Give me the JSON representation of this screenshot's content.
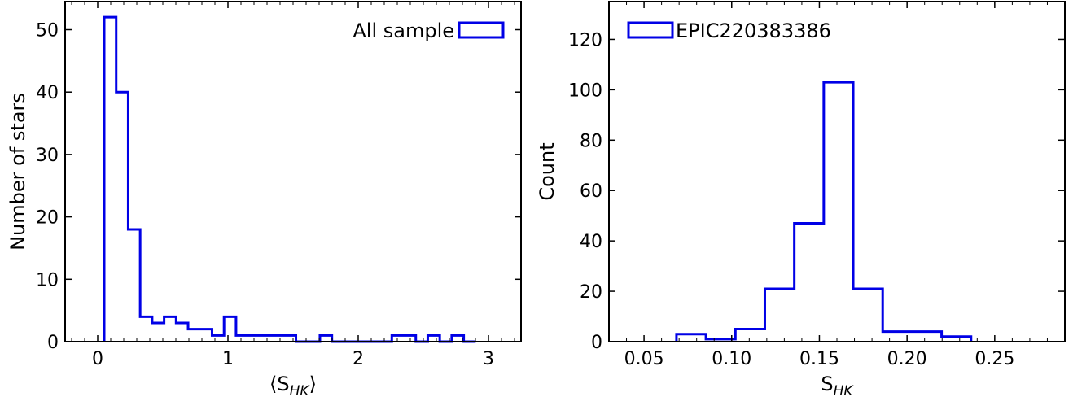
{
  "chart_data": [
    {
      "type": "histogram",
      "legend": "All sample",
      "legend_position": "top-right",
      "xlabel": "⟨S_HK⟩",
      "ylabel": "Number of stars",
      "xlim": [
        -0.25,
        3.25
      ],
      "ylim": [
        0,
        54.5
      ],
      "xticks": [
        0,
        1,
        2,
        3
      ],
      "yticks": [
        0,
        10,
        20,
        30,
        40,
        50
      ],
      "grid": false,
      "color": "#0000e6",
      "bin_edges": [
        0.05,
        0.142,
        0.234,
        0.326,
        0.418,
        0.51,
        0.602,
        0.694,
        0.786,
        0.878,
        0.97,
        1.062,
        1.154,
        1.246,
        1.338,
        1.43,
        1.522,
        1.614,
        1.706,
        1.798,
        1.89,
        1.982,
        2.074,
        2.166,
        2.258,
        2.35,
        2.442,
        2.534,
        2.626,
        2.718,
        2.81,
        2.902
      ],
      "counts": [
        52,
        40,
        18,
        4,
        3,
        4,
        3,
        2,
        2,
        1,
        4,
        1,
        1,
        1,
        1,
        1,
        0,
        0,
        1,
        0,
        0,
        0,
        0,
        0,
        1,
        1,
        0,
        1,
        0,
        1,
        0
      ]
    },
    {
      "type": "histogram",
      "legend": "EPIC220383386",
      "legend_position": "top-left",
      "xlabel": "S_HK",
      "ylabel": "Count",
      "xlim": [
        0.03,
        0.29
      ],
      "ylim": [
        0,
        135
      ],
      "xticks": [
        0.05,
        0.1,
        0.15,
        0.2,
        0.25
      ],
      "yticks": [
        0,
        20,
        40,
        60,
        80,
        100,
        120
      ],
      "grid": false,
      "color": "#0000e6",
      "bin_edges": [
        0.0685,
        0.0853,
        0.1021,
        0.1189,
        0.1357,
        0.1525,
        0.1693,
        0.1861,
        0.2029,
        0.2197,
        0.2365
      ],
      "counts": [
        3,
        1,
        5,
        21,
        47,
        103,
        21,
        4,
        4,
        2
      ]
    }
  ]
}
